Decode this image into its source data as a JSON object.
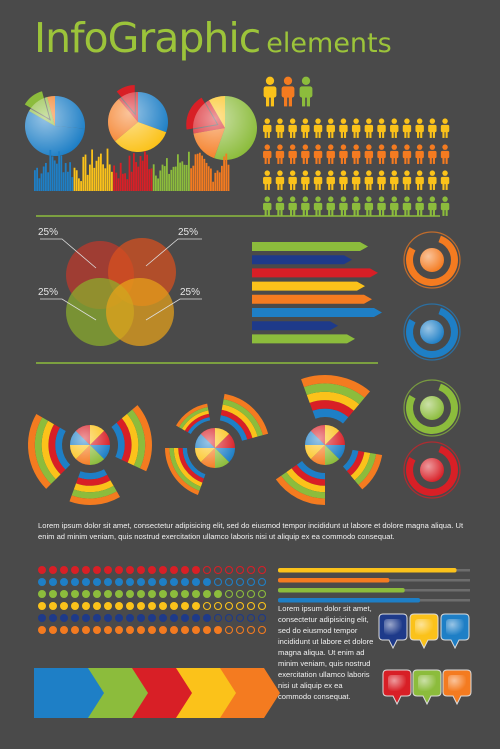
{
  "title": {
    "main": "InfoGraphic",
    "sub": "elements"
  },
  "colors": {
    "background": "#4a4a4a",
    "green": "#8cbc3c",
    "red": "#d81f26",
    "orange": "#f47b20",
    "yellow": "#fbc21a",
    "blue": "#1e7fc6",
    "navy": "#1e3a8a"
  },
  "venn": {
    "label_tl": "25%",
    "label_tr": "25%",
    "label_bl": "25%",
    "label_br": "25%"
  },
  "people_rows": [
    "yellow",
    "orange",
    "yellow",
    "green"
  ],
  "progress_levels": [
    0.93,
    0.58,
    0.66,
    0.74
  ],
  "text": {
    "lorem_wide": "Lorem ipsum dolor sit amet, consectetur adipisicing elit, sed do eiusmod tempor incididunt ut labore et dolore magna aliqua. Ut enim ad minim veniam, quis nostrud exercitation ullamco laboris nisi ut aliquip ex ea commodo consequat.",
    "lorem_narrow": "Lorem ipsum dolor sit amet, consectetur adipisicing elit, sed do eiusmod tempor incididunt ut labore et dolore magna aliqua. Ut enim ad minim veniam, quis nostrud exercitation ullamco laboris nisi ut aliquip ex ea commodo consequat."
  }
}
